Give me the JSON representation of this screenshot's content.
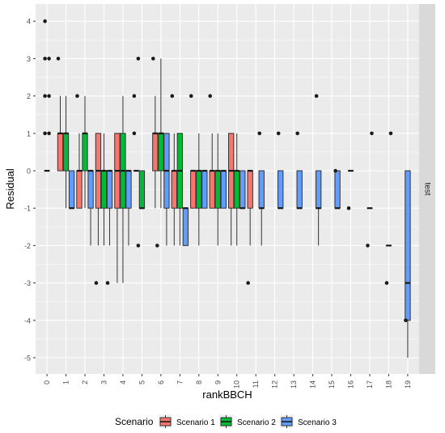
{
  "chart_data": {
    "type": "boxplot",
    "xlabel": "rankBBCH",
    "ylabel": "Residual",
    "facet_label": "test",
    "categories": [
      "0",
      "1",
      "2",
      "3",
      "4",
      "5",
      "6",
      "7",
      "8",
      "9",
      "10",
      "11",
      "12",
      "13",
      "14",
      "15",
      "16",
      "17",
      "18",
      "19"
    ],
    "ylim": [
      -5.4,
      4.4
    ],
    "yticks": [
      -5,
      -4,
      -3,
      -2,
      -1,
      0,
      1,
      2,
      3,
      4
    ],
    "grid": true,
    "legend": {
      "title": "Scenario",
      "position": "bottom",
      "entries": [
        "Scenario 1",
        "Scenario 2",
        "Scenario 3"
      ]
    },
    "colors": {
      "Scenario 1": "#F8766D",
      "Scenario 2": "#00BA38",
      "Scenario 3": "#619CFF",
      "panel": "#EBEBEB",
      "grid": "#FFFFFF",
      "strip": "#D9D9D9"
    },
    "series": [
      {
        "name": "Scenario 1",
        "boxes": [
          {
            "x": "0",
            "q1": 0,
            "median": 0,
            "q3": 0,
            "whisker_low": 0,
            "whisker_high": 0,
            "outliers": [
              1,
              1,
              2,
              2,
              3,
              3,
              4
            ]
          },
          {
            "x": "1",
            "q1": 0,
            "median": 1,
            "q3": 1,
            "whisker_low": 0,
            "whisker_high": 2,
            "outliers": [
              3
            ]
          },
          {
            "x": "2",
            "q1": -1,
            "median": 0,
            "q3": 0,
            "whisker_low": -1,
            "whisker_high": 1,
            "outliers": [
              2
            ]
          },
          {
            "x": "3",
            "q1": -1,
            "median": 0,
            "q3": 1,
            "whisker_low": -2,
            "whisker_high": 1,
            "outliers": [
              -3
            ]
          },
          {
            "x": "4",
            "q1": -1,
            "median": 0,
            "q3": 1,
            "whisker_low": -3,
            "whisker_high": 1,
            "outliers": []
          },
          {
            "x": "5",
            "q1": 0,
            "median": 0,
            "q3": 0,
            "whisker_low": 0,
            "whisker_high": 0,
            "outliers": [
              1,
              -2,
              2,
              3
            ]
          },
          {
            "x": "6",
            "q1": 0,
            "median": 1,
            "q3": 1,
            "whisker_low": -1,
            "whisker_high": 2,
            "outliers": [
              3,
              -2
            ]
          },
          {
            "x": "7",
            "q1": -1,
            "median": 0,
            "q3": 0,
            "whisker_low": -2,
            "whisker_high": 1,
            "outliers": [
              2
            ]
          },
          {
            "x": "8",
            "q1": -1,
            "median": 0,
            "q3": 0,
            "whisker_low": -1,
            "whisker_high": 0,
            "outliers": [
              2
            ]
          },
          {
            "x": "9",
            "q1": -1,
            "median": 0,
            "q3": 0,
            "whisker_low": -1,
            "whisker_high": 1,
            "outliers": [
              2
            ]
          },
          {
            "x": "10",
            "q1": -1,
            "median": 0,
            "q3": 1,
            "whisker_low": -2,
            "whisker_high": 1,
            "outliers": []
          },
          {
            "x": "11",
            "q1": -1,
            "median": 0,
            "q3": 0,
            "whisker_low": -2,
            "whisker_high": 0,
            "outliers": [
              -3
            ]
          }
        ]
      },
      {
        "name": "Scenario 2",
        "boxes": [
          {
            "x": "1",
            "q1": 0,
            "median": 1,
            "q3": 1,
            "whisker_low": -1,
            "whisker_high": 2,
            "outliers": []
          },
          {
            "x": "2",
            "q1": 0,
            "median": 1,
            "q3": 1,
            "whisker_low": -1,
            "whisker_high": 2,
            "outliers": []
          },
          {
            "x": "3",
            "q1": -1,
            "median": 0,
            "q3": 0,
            "whisker_low": -2,
            "whisker_high": 1,
            "outliers": []
          },
          {
            "x": "4",
            "q1": -1,
            "median": 0,
            "q3": 1,
            "whisker_low": -3,
            "whisker_high": 2,
            "outliers": []
          },
          {
            "x": "5",
            "q1": -1,
            "median": -1,
            "q3": 0,
            "whisker_low": -1,
            "whisker_high": 0,
            "outliers": []
          },
          {
            "x": "6",
            "q1": 0,
            "median": 1,
            "q3": 1,
            "whisker_low": -1,
            "whisker_high": 3,
            "outliers": []
          },
          {
            "x": "7",
            "q1": -1,
            "median": 0,
            "q3": 1,
            "whisker_low": -2,
            "whisker_high": 1,
            "outliers": []
          },
          {
            "x": "8",
            "q1": -1,
            "median": 0,
            "q3": 0,
            "whisker_low": -2,
            "whisker_high": 1,
            "outliers": []
          },
          {
            "x": "9",
            "q1": -1,
            "median": 0,
            "q3": 0,
            "whisker_low": -2,
            "whisker_high": 1,
            "outliers": []
          },
          {
            "x": "10",
            "q1": -1,
            "median": 0,
            "q3": 0,
            "whisker_low": -2,
            "whisker_high": 1,
            "outliers": []
          }
        ]
      },
      {
        "name": "Scenario 3",
        "boxes": [
          {
            "x": "1",
            "q1": -1,
            "median": -1,
            "q3": 0,
            "whisker_low": -1,
            "whisker_high": 0,
            "outliers": []
          },
          {
            "x": "2",
            "q1": -1,
            "median": 0,
            "q3": 0,
            "whisker_low": -2,
            "whisker_high": 0,
            "outliers": []
          },
          {
            "x": "3",
            "q1": -1,
            "median": 0,
            "q3": 0,
            "whisker_low": -2,
            "whisker_high": 0,
            "outliers": [
              -3
            ]
          },
          {
            "x": "4",
            "q1": -1,
            "median": 0,
            "q3": 0,
            "whisker_low": -2,
            "whisker_high": 0,
            "outliers": []
          },
          {
            "x": "6",
            "q1": -1,
            "median": 0,
            "q3": 1,
            "whisker_low": -2,
            "whisker_high": 1,
            "outliers": []
          },
          {
            "x": "7",
            "q1": -2,
            "median": -1,
            "q3": -1,
            "whisker_low": -2,
            "whisker_high": -1,
            "outliers": []
          },
          {
            "x": "8",
            "q1": -1,
            "median": 0,
            "q3": 0,
            "whisker_low": -1,
            "whisker_high": 0,
            "outliers": []
          },
          {
            "x": "9",
            "q1": -1,
            "median": 0,
            "q3": 0,
            "whisker_low": -1,
            "whisker_high": 0,
            "outliers": []
          },
          {
            "x": "10",
            "q1": -1,
            "median": -1,
            "q3": 0,
            "whisker_low": -1,
            "whisker_high": 0,
            "outliers": []
          },
          {
            "x": "11",
            "q1": -1,
            "median": -1,
            "q3": 0,
            "whisker_low": -2,
            "whisker_high": 0,
            "outliers": [
              1
            ]
          },
          {
            "x": "12",
            "q1": -1,
            "median": -1,
            "q3": 0,
            "whisker_low": -1,
            "whisker_high": 0,
            "outliers": [
              1
            ]
          },
          {
            "x": "13",
            "q1": -1,
            "median": -1,
            "q3": 0,
            "whisker_low": -1,
            "whisker_high": 0,
            "outliers": [
              1
            ]
          },
          {
            "x": "14",
            "q1": -1,
            "median": -1,
            "q3": 0,
            "whisker_low": -2,
            "whisker_high": 0,
            "outliers": [
              2
            ]
          },
          {
            "x": "15",
            "q1": -1,
            "median": -1,
            "q3": 0,
            "whisker_low": -1,
            "whisker_high": 0,
            "outliers": [
              0
            ]
          },
          {
            "x": "16",
            "q1": 0,
            "median": 0,
            "q3": 0,
            "whisker_low": 0,
            "whisker_high": 0,
            "outliers": [
              -1
            ]
          },
          {
            "x": "17",
            "q1": -1,
            "median": -1,
            "q3": -1,
            "whisker_low": -1,
            "whisker_high": -1,
            "outliers": [
              -2,
              1
            ]
          },
          {
            "x": "18",
            "q1": -2,
            "median": -2,
            "q3": -2,
            "whisker_low": -2,
            "whisker_high": -2,
            "outliers": [
              -3,
              1
            ]
          },
          {
            "x": "19",
            "q1": -4,
            "median": -3,
            "q3": 0,
            "whisker_low": -5,
            "whisker_high": 0,
            "outliers": [
              -4
            ]
          }
        ]
      }
    ]
  }
}
